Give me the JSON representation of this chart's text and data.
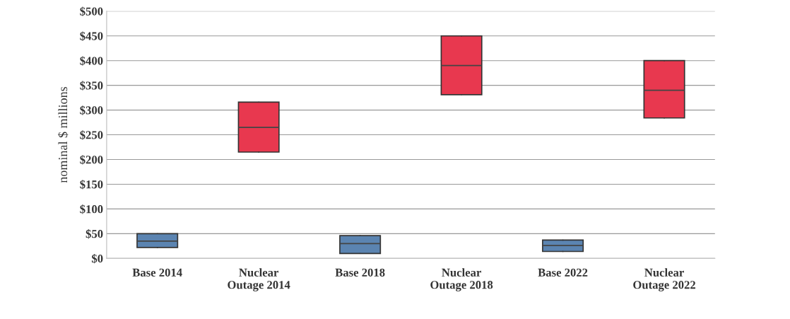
{
  "chart_data": {
    "type": "box",
    "ylabel": "nominal $ millions",
    "categories": [
      "Base 2014",
      "Nuclear\nOutage 2014",
      "Base 2018",
      "Nuclear\nOutage 2018",
      "Base 2022",
      "Nuclear\nOutage 2022"
    ],
    "boxes": [
      {
        "low": 22,
        "q1": 22,
        "median": 35,
        "q3": 50,
        "high": 50
      },
      {
        "low": 215,
        "q1": 215,
        "median": 265,
        "q3": 316,
        "high": 316
      },
      {
        "low": 10,
        "q1": 10,
        "median": 30,
        "q3": 46,
        "high": 46
      },
      {
        "low": 331,
        "q1": 331,
        "median": 390,
        "q3": 450,
        "high": 450
      },
      {
        "low": 14,
        "q1": 14,
        "median": 26,
        "q3": 37,
        "high": 37
      },
      {
        "low": 284,
        "q1": 284,
        "median": 340,
        "q3": 400,
        "high": 400
      }
    ],
    "colors": [
      "#5b84b1",
      "#e8384f",
      "#5b84b1",
      "#e8384f",
      "#5b84b1",
      "#e8384f"
    ],
    "ylim": [
      0,
      500
    ],
    "yticks": [
      {
        "value": 0,
        "label": "$0"
      },
      {
        "value": 50,
        "label": "$50"
      },
      {
        "value": 100,
        "label": "$100"
      },
      {
        "value": 150,
        "label": "$150"
      },
      {
        "value": 200,
        "label": "$200"
      },
      {
        "value": 250,
        "label": "$250"
      },
      {
        "value": 300,
        "label": "$300"
      },
      {
        "value": 350,
        "label": "$350"
      },
      {
        "value": 400,
        "label": "$400"
      },
      {
        "value": 450,
        "label": "$450"
      },
      {
        "value": 500,
        "label": "$500"
      }
    ],
    "grid": "y"
  }
}
